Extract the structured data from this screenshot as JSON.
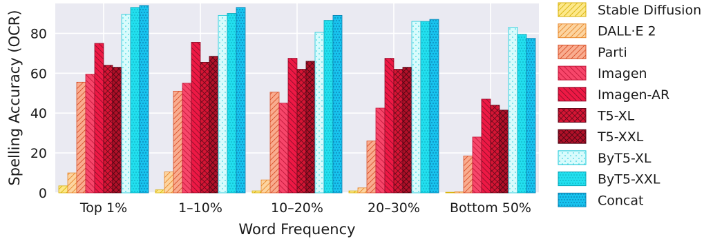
{
  "chart_data": {
    "type": "bar",
    "xlabel": "Word Frequency",
    "ylabel": "Spelling Accuracy (OCR)",
    "ylim": [
      0,
      95
    ],
    "yticks": [
      0,
      20,
      40,
      60,
      80
    ],
    "grid": true,
    "legend_position": "right",
    "categories": [
      "Top 1%",
      "1–10%",
      "10–20%",
      "20–30%",
      "Bottom 50%"
    ],
    "series": [
      {
        "name": "Stable Diffusion",
        "values": [
          3.5,
          1.5,
          1.0,
          1.0,
          0.3
        ],
        "fill": "#fde88a",
        "stroke": "#d8b20a",
        "pattern": "sd"
      },
      {
        "name": "DALL·E 2",
        "values": [
          10.0,
          10.5,
          6.5,
          2.5,
          0.5
        ],
        "fill": "#fcd4a0",
        "stroke": "#e8872a",
        "pattern": "fwd"
      },
      {
        "name": "Parti",
        "values": [
          55.5,
          51.0,
          50.5,
          26.0,
          18.5
        ],
        "fill": "#f9ac8f",
        "stroke": "#d8502a",
        "pattern": "fwd"
      },
      {
        "name": "Imagen",
        "values": [
          59.5,
          55.0,
          45.0,
          42.5,
          28.0
        ],
        "fill": "#f7466a",
        "stroke": "#c2183a",
        "pattern": "back"
      },
      {
        "name": "Imagen-AR",
        "values": [
          75.0,
          75.5,
          67.5,
          67.5,
          47.0
        ],
        "fill": "#ee1945",
        "stroke": "#8e0e2a",
        "pattern": "back"
      },
      {
        "name": "T5-XL",
        "values": [
          64.0,
          65.5,
          62.0,
          62.0,
          44.0
        ],
        "fill": "#d51534",
        "stroke": "#6a0a1c",
        "pattern": "cross"
      },
      {
        "name": "T5-XXL",
        "values": [
          63.0,
          68.5,
          66.0,
          63.0,
          41.5
        ],
        "fill": "#b01028",
        "stroke": "#4e0614",
        "pattern": "cross"
      },
      {
        "name": "ByT5-XL",
        "values": [
          89.5,
          89.0,
          80.5,
          86.0,
          83.0
        ],
        "fill": "#d8fbfc",
        "stroke": "#18c9d8",
        "pattern": "dotsSparse"
      },
      {
        "name": "ByT5-XXL",
        "values": [
          93.0,
          90.0,
          86.5,
          86.0,
          79.5
        ],
        "fill": "#22dfee",
        "stroke": "#0aa6b8",
        "pattern": "dots"
      },
      {
        "name": "Concat",
        "values": [
          94.0,
          93.0,
          89.0,
          87.0,
          77.5
        ],
        "fill": "#18c3ee",
        "stroke": "#0a7fb0",
        "pattern": "dotsDense"
      }
    ]
  }
}
